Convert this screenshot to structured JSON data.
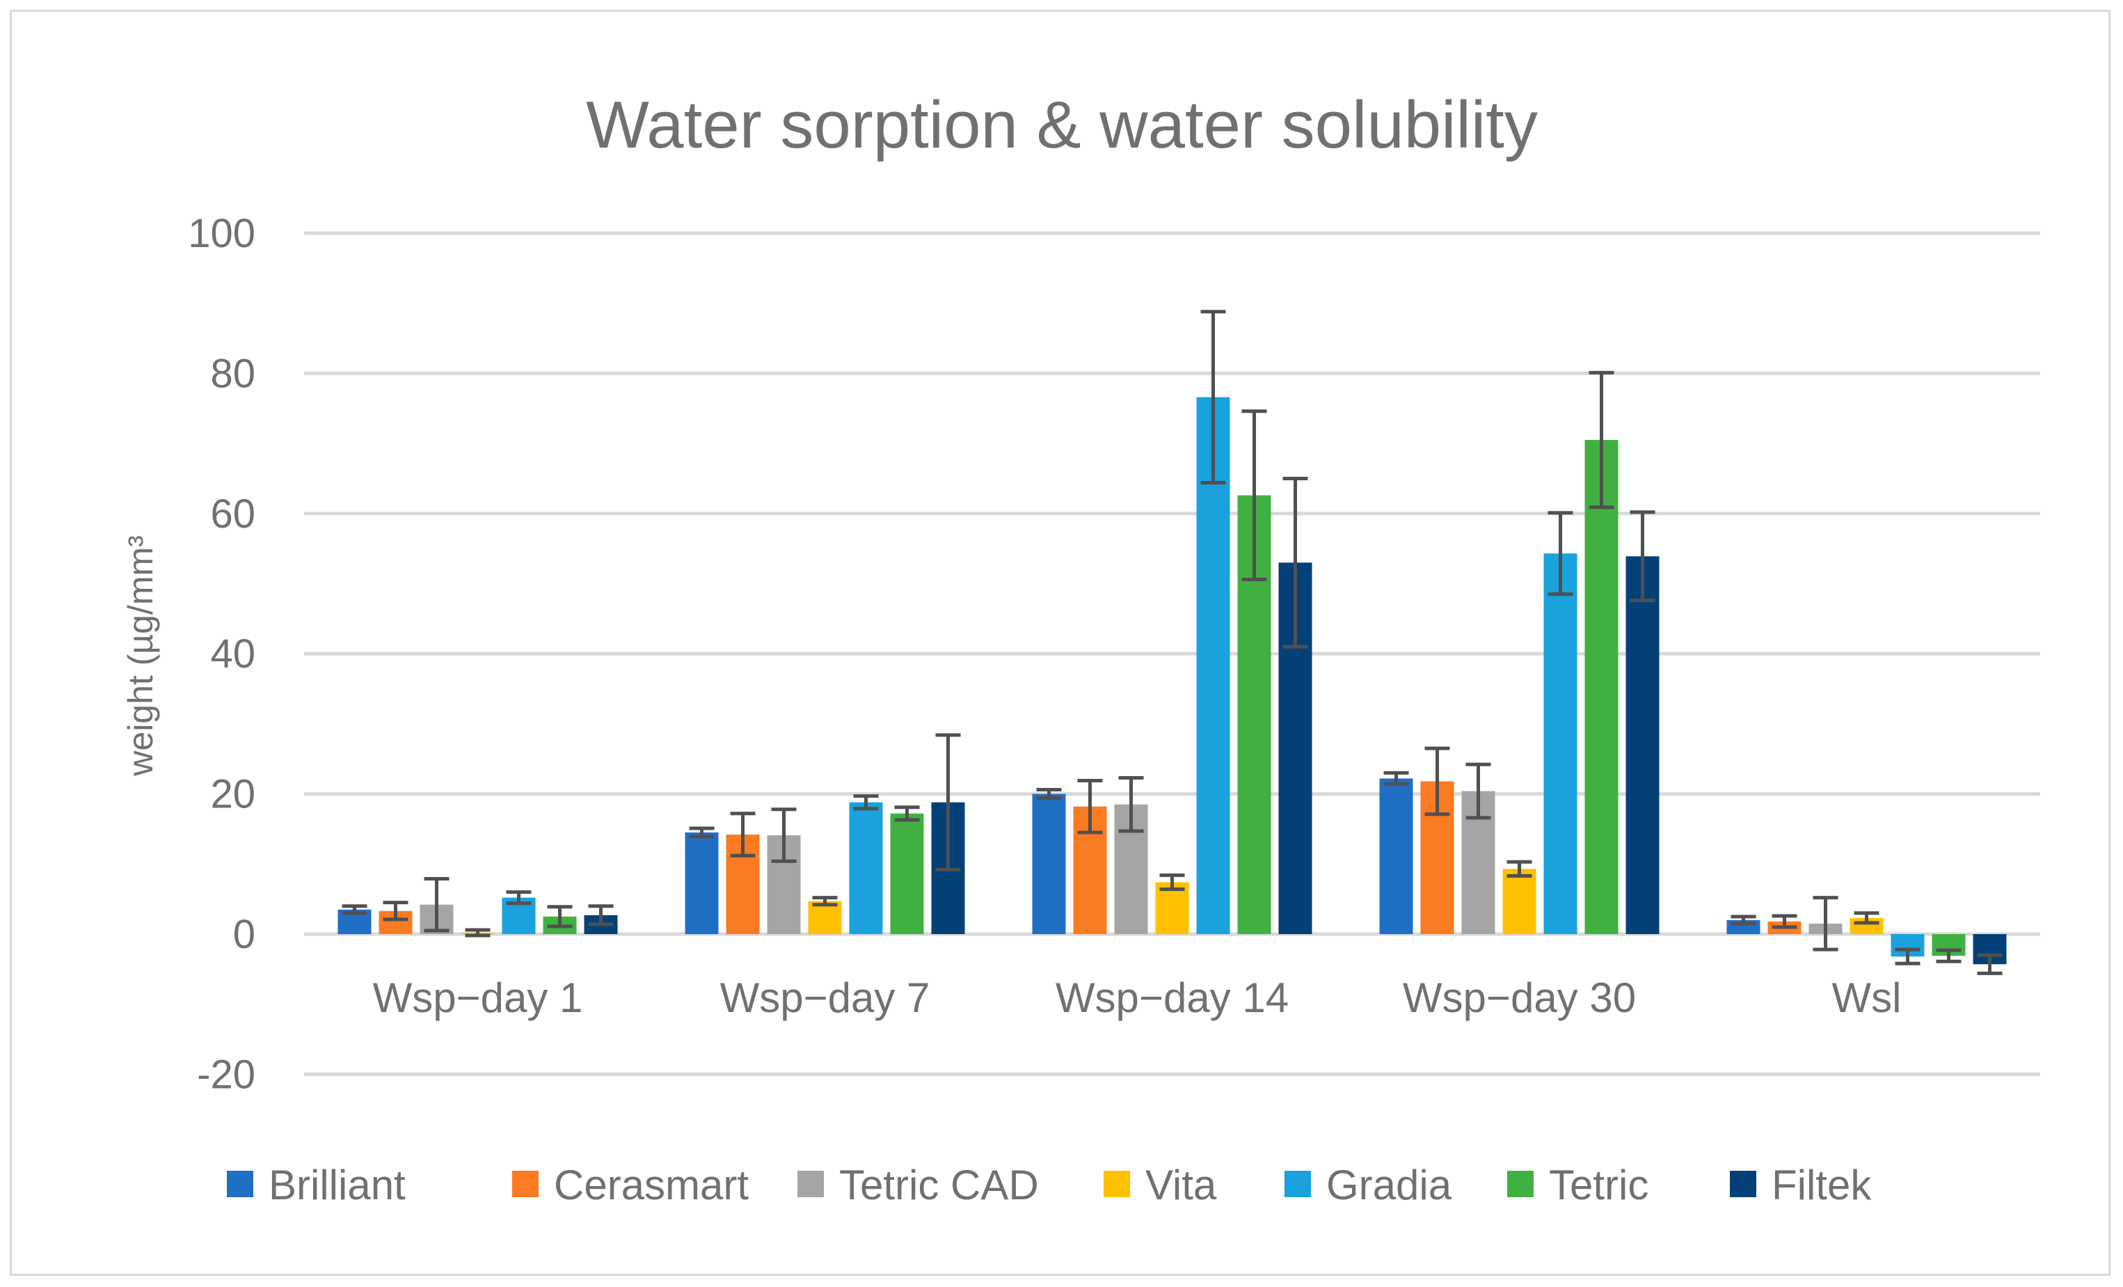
{
  "chart_data": {
    "type": "bar",
    "title": "Water sorption & water solubility",
    "ylabel": "weight (µg/mm³",
    "xlabel": "",
    "ylim": [
      -20,
      100
    ],
    "yticks": [
      -20,
      0,
      20,
      40,
      60,
      80,
      100
    ],
    "grid": true,
    "legend_position": "bottom",
    "categories": [
      "Wsp−day 1",
      "Wsp−day 7",
      "Wsp−day 14",
      "Wsp−day 30",
      "Wsl"
    ],
    "series": [
      {
        "name": "Brilliant",
        "color": "#1f6fc5",
        "values": [
          3.5,
          14.5,
          20,
          22.2,
          2
        ],
        "errors": [
          0.5,
          0.6,
          0.6,
          0.8,
          0.5
        ]
      },
      {
        "name": "Cerasmart",
        "color": "#fb7b22",
        "values": [
          3.3,
          14.2,
          18.2,
          21.8,
          1.8
        ],
        "errors": [
          1.2,
          3.0,
          3.7,
          4.7,
          0.8
        ]
      },
      {
        "name": "Tetric CAD",
        "color": "#a5a5a5",
        "values": [
          4.2,
          14.1,
          18.5,
          20.4,
          1.5
        ],
        "errors": [
          3.7,
          3.7,
          3.8,
          3.8,
          3.7
        ]
      },
      {
        "name": "Vita",
        "color": "#ffc000",
        "values": [
          0.2,
          4.7,
          7.4,
          9.3,
          2.3
        ],
        "errors": [
          0.4,
          0.5,
          1.0,
          1.0,
          0.7
        ]
      },
      {
        "name": "Gradia",
        "color": "#1aa2dc",
        "values": [
          5.2,
          18.8,
          76.6,
          54.3,
          -3.2
        ],
        "errors": [
          0.8,
          0.9,
          12.2,
          5.8,
          1.0
        ]
      },
      {
        "name": "Tetric",
        "color": "#40b140",
        "values": [
          2.5,
          17.2,
          62.6,
          70.5,
          -3.1
        ],
        "errors": [
          1.4,
          0.9,
          12.0,
          9.6,
          0.8
        ]
      },
      {
        "name": "Filtek",
        "color": "#034078",
        "values": [
          2.7,
          18.8,
          53,
          53.9,
          -4.3
        ],
        "errors": [
          1.3,
          9.6,
          12.0,
          6.3,
          1.3
        ]
      }
    ]
  }
}
